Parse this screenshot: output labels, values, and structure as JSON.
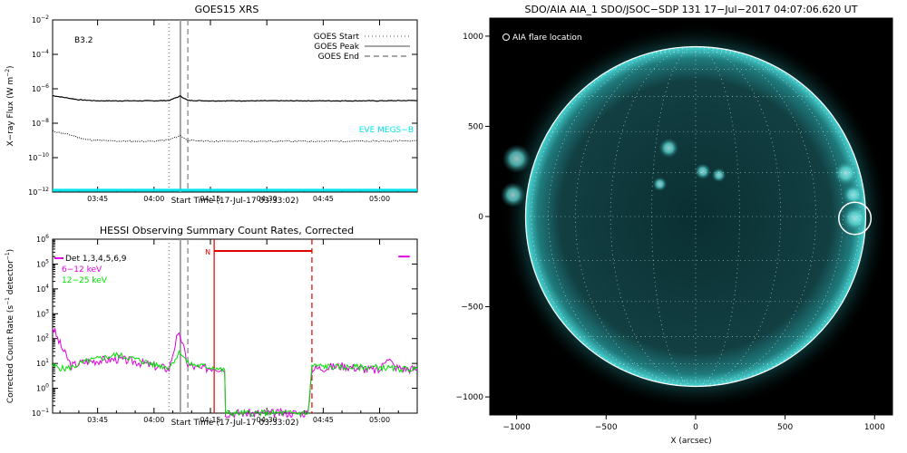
{
  "chart_data": [
    {
      "type": "line",
      "title": "GOES15 XRS",
      "xlabel": "Start Time (17-Jul-17 03:33:02)",
      "ylabel": "X-ray Flux (W m⁻²)",
      "ylabel_plain": "X−ray Flux (W m",
      "ylabel_sup": "−2",
      "ylabel_close": ")",
      "y_scale": "log",
      "ylim": [
        1e-12,
        0.01
      ],
      "xlim": [
        "03:33:02",
        "05:10:00"
      ],
      "x_ticks": [
        "03:45",
        "04:00",
        "04:15",
        "04:30",
        "04:45",
        "05:00"
      ],
      "x_tick_minutes": [
        225,
        240,
        255,
        270,
        285,
        300
      ],
      "y_ticks": [
        {
          "base": "10",
          "exp": "−2",
          "value": 0.01
        },
        {
          "base": "10",
          "exp": "−4",
          "value": 0.0001
        },
        {
          "base": "10",
          "exp": "−6",
          "value": 1e-06
        },
        {
          "base": "10",
          "exp": "−8",
          "value": 1e-08
        },
        {
          "base": "10",
          "exp": "−10",
          "value": 1e-10
        },
        {
          "base": "10",
          "exp": "−12",
          "value": 1e-12
        }
      ],
      "annotation": "B3.2",
      "legend_position": "top-right",
      "legend": [
        {
          "label": "GOES Start",
          "style": "dotted"
        },
        {
          "label": "GOES Peak",
          "style": "solid"
        },
        {
          "label": "GOES End",
          "style": "dashed"
        }
      ],
      "eve_label": "EVE MEGS−B",
      "eve_color": "#00e5ee",
      "event_lines_minutes": {
        "start": 244,
        "peak": 247,
        "end": 249
      },
      "series": [
        {
          "x_minutes": [
            213.03,
            220,
            225,
            230,
            240,
            244,
            247,
            249,
            255,
            270,
            285,
            300,
            310
          ],
          "values": [
            4e-07,
            2.3e-07,
            2e-07,
            2e-07,
            2e-07,
            2.1e-07,
            3.8e-07,
            2.1e-07,
            2e-07,
            2e-07,
            2e-07,
            2e-07,
            2.1e-07
          ]
        },
        {
          "x_minutes": [
            213.03,
            218,
            222,
            230,
            240,
            244,
            247,
            249,
            255,
            270,
            285,
            300,
            310
          ],
          "values": [
            3.5e-09,
            2e-09,
            1.1e-09,
            9e-10,
            9e-10,
            1.1e-09,
            1.9e-09,
            1e-09,
            9e-10,
            9e-10,
            9e-10,
            9e-10,
            1e-09
          ]
        },
        {
          "x_minutes": [
            213.03,
            310
          ],
          "values": [
            1.3e-12,
            1.3e-12
          ]
        }
      ]
    },
    {
      "type": "line",
      "title": "HESSI Observing Summary Count Rates, Corrected",
      "xlabel": "Start Time (17-Jul-17 03:33:02)",
      "ylabel_plain": "Corrected Count Rate (s",
      "ylabel_sup": "−1",
      "ylabel_mid": " detector",
      "ylabel_sup2": "−1",
      "ylabel_close": ")",
      "y_scale": "log",
      "ylim": [
        0.1,
        1000000.0
      ],
      "xlim": [
        "03:33:02",
        "05:10:00"
      ],
      "x_ticks": [
        "03:45",
        "04:00",
        "04:15",
        "04:30",
        "04:45",
        "05:00"
      ],
      "x_tick_minutes": [
        225,
        240,
        255,
        270,
        285,
        300
      ],
      "y_ticks": [
        {
          "base": "10",
          "exp": "6",
          "value": 1000000.0
        },
        {
          "base": "10",
          "exp": "5",
          "value": 100000.0
        },
        {
          "base": "10",
          "exp": "4",
          "value": 10000.0
        },
        {
          "base": "10",
          "exp": "3",
          "value": 1000.0
        },
        {
          "base": "10",
          "exp": "2",
          "value": 100.0
        },
        {
          "base": "10",
          "exp": "1",
          "value": 10.0
        },
        {
          "base": "10",
          "exp": "0",
          "value": 1
        },
        {
          "base": "10",
          "exp": "−1",
          "value": 0.1
        }
      ],
      "legend_position": "top-left",
      "legend": [
        {
          "label": "Det 1,3,4,5,6,9",
          "color": "#000000"
        },
        {
          "label": "6−12 keV",
          "color": "#e000e0"
        },
        {
          "label": "12−25 keV",
          "color": "#00e000"
        }
      ],
      "night_label": "N",
      "night_color": "#e00000",
      "night_minutes": [
        256,
        282
      ],
      "event_lines_minutes": {
        "start": 244,
        "peak": 247,
        "end": 249
      },
      "series": [
        {
          "name": "6−12 keV",
          "color": "#e000e0",
          "x_minutes": [
            213.03,
            215,
            218,
            222,
            230,
            235,
            240,
            244,
            246,
            247,
            249,
            252,
            256,
            258.8,
            259,
            281,
            282,
            290,
            300,
            302,
            304,
            308,
            310
          ],
          "values": [
            300,
            60,
            8,
            12,
            15,
            12,
            8,
            6,
            100,
            130,
            9,
            6,
            7,
            6,
            0.1,
            0.1,
            6,
            8,
            5,
            20,
            7,
            6,
            6
          ]
        },
        {
          "name": "12−25 keV",
          "color": "#00e000",
          "x_minutes": [
            213.03,
            216,
            218,
            222,
            230,
            235,
            240,
            244,
            247,
            249,
            252,
            256,
            258.8,
            259,
            281,
            282,
            290,
            300,
            304,
            310
          ],
          "values": [
            8,
            6,
            7,
            12,
            22,
            15,
            9,
            7,
            30,
            10,
            8,
            7,
            5,
            0.1,
            0.1,
            8,
            7,
            7,
            6,
            6
          ]
        }
      ],
      "extra_mark": {
        "color": "#e000e0",
        "x_minutes": [
          305,
          308
        ],
        "value": 200000.0
      }
    },
    {
      "type": "heatmap",
      "title": "SDO/AIA AIA_1 SDO/JSOC−SDP 131 17−Jul−2017 04:07:06.620 UT",
      "xlabel": "X (arcsec)",
      "ylabel": "",
      "xlim": [
        -1150,
        1100
      ],
      "ylim": [
        -1100,
        1100
      ],
      "x_ticks": [
        "−1000",
        "−500",
        "0",
        "500",
        "1000"
      ],
      "x_tick_values": [
        -1000,
        -500,
        0,
        500,
        1000
      ],
      "y_ticks": [
        "1000",
        "500",
        "0",
        "−500",
        "−1000"
      ],
      "y_tick_values": [
        1000,
        500,
        0,
        -500,
        -1000
      ],
      "legend": [
        {
          "label": "AIA flare location",
          "symbol": "circle"
        }
      ],
      "legend_position": "top-left",
      "disk_radius_arcsec": 950,
      "flare_location_arcsec": [
        890,
        -10
      ],
      "flare_circle_radius_arcsec": 90,
      "colors": {
        "disk": "#0f3f42",
        "limb": "#35c6c6",
        "background": "#000000"
      }
    }
  ]
}
